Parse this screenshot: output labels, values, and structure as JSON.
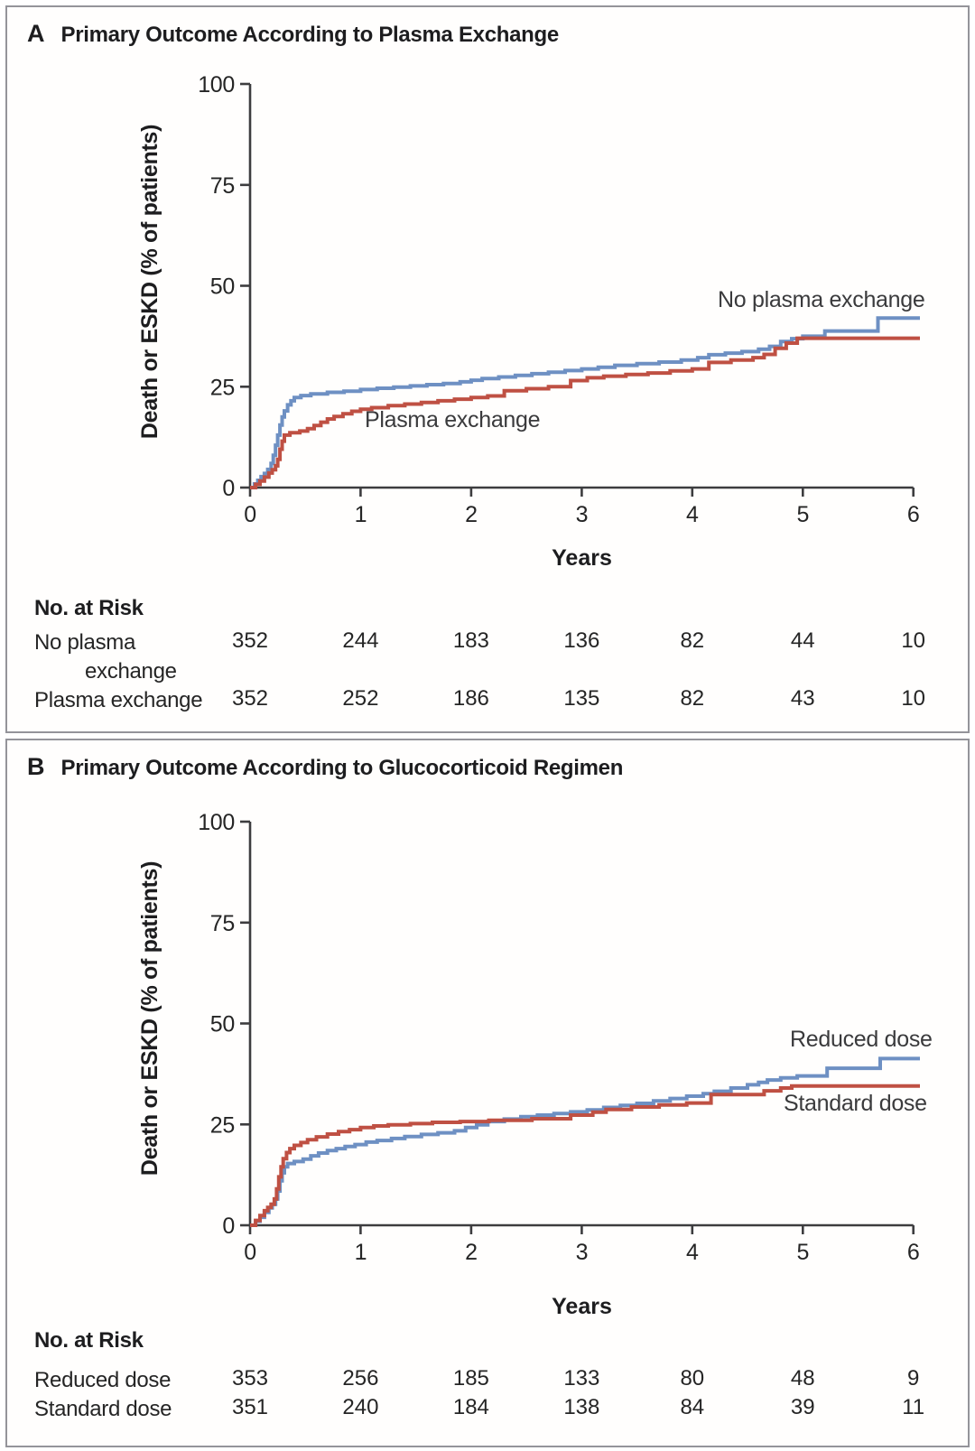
{
  "chart_data": [
    {
      "type": "line",
      "subtype": "kaplan-meier-step",
      "panel_letter": "A",
      "title": "Primary Outcome According to Plasma Exchange",
      "xlabel": "Years",
      "ylabel": "Death or ESKD (% of patients)",
      "xlim": [
        0,
        6
      ],
      "ylim": [
        0,
        100
      ],
      "xticks": [
        "0",
        "1",
        "2",
        "3",
        "4",
        "5",
        "6"
      ],
      "yticks": [
        "0",
        "25",
        "50",
        "75",
        "100"
      ],
      "grid": false,
      "legend_position": "inline-labels",
      "axis_color": "#3d3d3f",
      "series": [
        {
          "name": "No plasma exchange",
          "color": "#6e90c3",
          "points": [
            [
              0,
              0
            ],
            [
              0.04,
              0.9
            ],
            [
              0.07,
              1.8
            ],
            [
              0.1,
              2.7
            ],
            [
              0.13,
              3.5
            ],
            [
              0.16,
              4.5
            ],
            [
              0.19,
              6
            ],
            [
              0.21,
              8
            ],
            [
              0.23,
              10.5
            ],
            [
              0.25,
              13
            ],
            [
              0.27,
              15.5
            ],
            [
              0.29,
              17.5
            ],
            [
              0.31,
              19
            ],
            [
              0.34,
              20.5
            ],
            [
              0.37,
              21.5
            ],
            [
              0.4,
              22.3
            ],
            [
              0.46,
              22.8
            ],
            [
              0.55,
              23.2
            ],
            [
              0.7,
              23.6
            ],
            [
              0.85,
              23.9
            ],
            [
              1,
              24.3
            ],
            [
              1.15,
              24.6
            ],
            [
              1.3,
              24.9
            ],
            [
              1.45,
              25.2
            ],
            [
              1.6,
              25.5
            ],
            [
              1.75,
              25.8
            ],
            [
              1.9,
              26.2
            ],
            [
              2,
              26.6
            ],
            [
              2.1,
              27
            ],
            [
              2.25,
              27.4
            ],
            [
              2.4,
              27.8
            ],
            [
              2.55,
              28.2
            ],
            [
              2.7,
              28.6
            ],
            [
              2.85,
              29
            ],
            [
              3,
              29.4
            ],
            [
              3.15,
              29.8
            ],
            [
              3.3,
              30.3
            ],
            [
              3.5,
              30.7
            ],
            [
              3.7,
              31.1
            ],
            [
              3.9,
              31.6
            ],
            [
              4.05,
              32.2
            ],
            [
              4.15,
              32.9
            ],
            [
              4.3,
              33.3
            ],
            [
              4.45,
              33.7
            ],
            [
              4.6,
              34.3
            ],
            [
              4.7,
              35
            ],
            [
              4.8,
              36.2
            ],
            [
              4.9,
              36.9
            ],
            [
              5,
              37.5
            ],
            [
              5.2,
              38.8
            ],
            [
              5.68,
              42
            ]
          ]
        },
        {
          "name": "Plasma exchange",
          "color": "#bf5043",
          "points": [
            [
              0,
              0
            ],
            [
              0.05,
              0.8
            ],
            [
              0.09,
              1.6
            ],
            [
              0.13,
              2.6
            ],
            [
              0.17,
              3.6
            ],
            [
              0.2,
              4.4
            ],
            [
              0.23,
              5.4
            ],
            [
              0.25,
              7
            ],
            [
              0.27,
              9.5
            ],
            [
              0.29,
              11.5
            ],
            [
              0.31,
              13
            ],
            [
              0.36,
              13.6
            ],
            [
              0.45,
              14
            ],
            [
              0.52,
              14.6
            ],
            [
              0.58,
              15.4
            ],
            [
              0.64,
              16.2
            ],
            [
              0.7,
              17
            ],
            [
              0.76,
              17.6
            ],
            [
              0.84,
              18.3
            ],
            [
              0.92,
              18.9
            ],
            [
              1,
              19.4
            ],
            [
              1.1,
              19.8
            ],
            [
              1.25,
              20.3
            ],
            [
              1.4,
              20.7
            ],
            [
              1.55,
              21.1
            ],
            [
              1.7,
              21.5
            ],
            [
              1.85,
              21.9
            ],
            [
              2,
              22.3
            ],
            [
              2.15,
              22.7
            ],
            [
              2.3,
              24
            ],
            [
              2.5,
              24.5
            ],
            [
              2.7,
              25
            ],
            [
              2.9,
              26.5
            ],
            [
              3.05,
              27.2
            ],
            [
              3.2,
              27.6
            ],
            [
              3.4,
              28
            ],
            [
              3.6,
              28.4
            ],
            [
              3.8,
              28.9
            ],
            [
              4,
              29.4
            ],
            [
              4.15,
              31
            ],
            [
              4.35,
              31.6
            ],
            [
              4.55,
              32.2
            ],
            [
              4.65,
              33
            ],
            [
              4.75,
              34.5
            ],
            [
              4.85,
              35.8
            ],
            [
              4.95,
              37
            ]
          ]
        }
      ],
      "risk_table": {
        "heading": "No. at Risk",
        "columns_years": [
          0,
          1,
          2,
          3,
          4,
          5,
          6
        ],
        "rows": [
          {
            "label": "No plasma exchange",
            "wrap": true,
            "values": [
              "352",
              "244",
              "183",
              "136",
              "82",
              "44",
              "10"
            ]
          },
          {
            "label": "Plasma exchange",
            "wrap": false,
            "values": [
              "352",
              "252",
              "186",
              "135",
              "82",
              "43",
              "10"
            ]
          }
        ]
      }
    },
    {
      "type": "line",
      "subtype": "kaplan-meier-step",
      "panel_letter": "B",
      "title": "Primary Outcome According to Glucocorticoid Regimen",
      "xlabel": "Years",
      "ylabel": "Death or ESKD (% of patients)",
      "xlim": [
        0,
        6
      ],
      "ylim": [
        0,
        100
      ],
      "xticks": [
        "0",
        "1",
        "2",
        "3",
        "4",
        "5",
        "6"
      ],
      "yticks": [
        "0",
        "25",
        "50",
        "75",
        "100"
      ],
      "grid": false,
      "legend_position": "inline-labels",
      "axis_color": "#3d3d3f",
      "series": [
        {
          "name": "Reduced dose",
          "color": "#6e90c3",
          "points": [
            [
              0,
              0
            ],
            [
              0.05,
              1
            ],
            [
              0.09,
              2
            ],
            [
              0.13,
              3.2
            ],
            [
              0.17,
              4.3
            ],
            [
              0.2,
              5.2
            ],
            [
              0.23,
              6.5
            ],
            [
              0.25,
              8.5
            ],
            [
              0.27,
              11
            ],
            [
              0.29,
              13
            ],
            [
              0.31,
              14.5
            ],
            [
              0.34,
              15.3
            ],
            [
              0.4,
              15.8
            ],
            [
              0.48,
              16.4
            ],
            [
              0.55,
              17.2
            ],
            [
              0.62,
              17.9
            ],
            [
              0.7,
              18.5
            ],
            [
              0.78,
              19
            ],
            [
              0.86,
              19.5
            ],
            [
              0.95,
              20
            ],
            [
              1.05,
              20.6
            ],
            [
              1.15,
              21
            ],
            [
              1.28,
              21.5
            ],
            [
              1.4,
              22
            ],
            [
              1.55,
              22.5
            ],
            [
              1.7,
              22.9
            ],
            [
              1.85,
              23.4
            ],
            [
              1.95,
              24.2
            ],
            [
              2.05,
              24.9
            ],
            [
              2.15,
              25.7
            ],
            [
              2.3,
              26.3
            ],
            [
              2.45,
              26.9
            ],
            [
              2.6,
              27.3
            ],
            [
              2.75,
              27.7
            ],
            [
              2.9,
              28.1
            ],
            [
              3.05,
              28.6
            ],
            [
              3.2,
              29.2
            ],
            [
              3.35,
              29.7
            ],
            [
              3.5,
              30.2
            ],
            [
              3.65,
              30.8
            ],
            [
              3.8,
              31.4
            ],
            [
              3.95,
              32
            ],
            [
              4.1,
              32.6
            ],
            [
              4.2,
              33.2
            ],
            [
              4.35,
              34
            ],
            [
              4.5,
              34.8
            ],
            [
              4.6,
              35.4
            ],
            [
              4.68,
              36
            ],
            [
              4.8,
              36.5
            ],
            [
              4.95,
              37
            ],
            [
              5.22,
              38.9
            ],
            [
              5.7,
              41.3
            ]
          ]
        },
        {
          "name": "Standard dose",
          "color": "#bf5043",
          "points": [
            [
              0,
              0
            ],
            [
              0.05,
              1.2
            ],
            [
              0.09,
              2.4
            ],
            [
              0.13,
              3.6
            ],
            [
              0.16,
              4.4
            ],
            [
              0.19,
              5.2
            ],
            [
              0.22,
              6.5
            ],
            [
              0.24,
              9
            ],
            [
              0.26,
              12
            ],
            [
              0.28,
              14.5
            ],
            [
              0.3,
              16.5
            ],
            [
              0.33,
              18
            ],
            [
              0.36,
              19
            ],
            [
              0.4,
              19.8
            ],
            [
              0.46,
              20.5
            ],
            [
              0.52,
              21.2
            ],
            [
              0.6,
              21.9
            ],
            [
              0.7,
              22.6
            ],
            [
              0.8,
              23.2
            ],
            [
              0.9,
              23.7
            ],
            [
              1,
              24.2
            ],
            [
              1.12,
              24.6
            ],
            [
              1.25,
              24.9
            ],
            [
              1.45,
              25.2
            ],
            [
              1.65,
              25.5
            ],
            [
              1.9,
              25.7
            ],
            [
              2.16,
              26
            ],
            [
              2.55,
              26.4
            ],
            [
              2.9,
              27.3
            ],
            [
              3.1,
              28
            ],
            [
              3.22,
              28.7
            ],
            [
              3.45,
              29.3
            ],
            [
              3.7,
              29.8
            ],
            [
              3.95,
              30.3
            ],
            [
              4.17,
              32.4
            ],
            [
              4.65,
              33.3
            ],
            [
              4.8,
              34
            ],
            [
              4.9,
              34.5
            ]
          ]
        }
      ],
      "risk_table": {
        "heading": "No. at Risk",
        "columns_years": [
          0,
          1,
          2,
          3,
          4,
          5,
          6
        ],
        "rows": [
          {
            "label": "Reduced dose",
            "wrap": false,
            "values": [
              "353",
              "256",
              "185",
              "133",
              "80",
              "48",
              "9"
            ]
          },
          {
            "label": "Standard dose",
            "wrap": false,
            "values": [
              "351",
              "240",
              "184",
              "138",
              "84",
              "39",
              "11"
            ]
          }
        ]
      }
    }
  ]
}
